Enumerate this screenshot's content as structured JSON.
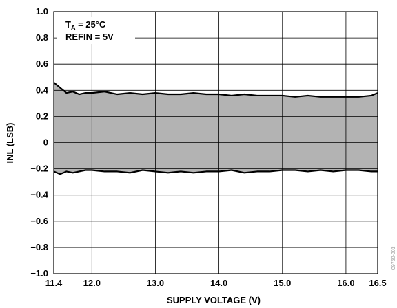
{
  "chart_data": {
    "type": "area",
    "title": "",
    "xlabel": "SUPPLY VOLTAGE (V)",
    "ylabel": "INL (LSB)",
    "xlim": [
      11.4,
      16.5
    ],
    "ylim": [
      -1.0,
      1.0
    ],
    "grid": true,
    "x_gridlines": [
      11.4,
      12.0,
      13.0,
      14.0,
      15.0,
      16.0,
      16.5
    ],
    "x_tick_labels": [
      "11.4",
      "12.0",
      "13.0",
      "14.0",
      "15.0",
      "16.0",
      "16.5"
    ],
    "y_ticks": [
      1.0,
      0.8,
      0.6,
      0.4,
      0.2,
      0,
      -0.2,
      -0.4,
      -0.6,
      -0.8,
      -1.0
    ],
    "y_tick_labels": [
      "1.0",
      "0.8",
      "0.6",
      "0.4",
      "0.2",
      "0",
      "−0.2",
      "−0.4",
      "−0.6",
      "−0.8",
      "−1.0"
    ],
    "annotation": {
      "ta_main": "T",
      "ta_sub": "A",
      "ta_rest": " = 25°C",
      "refin": "REFIN = 5V"
    },
    "figure_code": "09760-003",
    "fill_color": "#b3b3b3",
    "series": [
      {
        "values_description": "upper",
        "x": [
          11.4,
          11.5,
          11.6,
          11.7,
          11.8,
          11.9,
          12.0,
          12.2,
          12.4,
          12.6,
          12.8,
          13.0,
          13.2,
          13.4,
          13.6,
          13.8,
          14.0,
          14.2,
          14.4,
          14.6,
          14.8,
          15.0,
          15.2,
          15.4,
          15.6,
          15.8,
          16.0,
          16.2,
          16.4,
          16.5
        ],
        "y": [
          0.46,
          0.42,
          0.38,
          0.39,
          0.37,
          0.38,
          0.38,
          0.39,
          0.37,
          0.38,
          0.37,
          0.38,
          0.37,
          0.37,
          0.38,
          0.37,
          0.37,
          0.36,
          0.37,
          0.36,
          0.36,
          0.36,
          0.35,
          0.36,
          0.35,
          0.35,
          0.35,
          0.35,
          0.36,
          0.38
        ]
      },
      {
        "values_description": "lower",
        "x": [
          11.4,
          11.5,
          11.6,
          11.7,
          11.8,
          11.9,
          12.0,
          12.2,
          12.4,
          12.6,
          12.8,
          13.0,
          13.2,
          13.4,
          13.6,
          13.8,
          14.0,
          14.2,
          14.4,
          14.6,
          14.8,
          15.0,
          15.2,
          15.4,
          15.6,
          15.8,
          16.0,
          16.2,
          16.4,
          16.5
        ],
        "y": [
          -0.22,
          -0.24,
          -0.22,
          -0.23,
          -0.22,
          -0.21,
          -0.21,
          -0.22,
          -0.22,
          -0.23,
          -0.21,
          -0.22,
          -0.23,
          -0.22,
          -0.23,
          -0.22,
          -0.22,
          -0.21,
          -0.23,
          -0.22,
          -0.22,
          -0.21,
          -0.21,
          -0.22,
          -0.21,
          -0.22,
          -0.21,
          -0.21,
          -0.22,
          -0.22
        ]
      }
    ]
  }
}
